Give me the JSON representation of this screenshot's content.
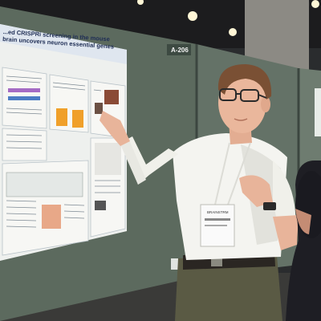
{
  "poster": {
    "title": "...ed CRISPRi screening in the mouse brain uncovers neuron essential genes",
    "booth_number": "A-206"
  },
  "badge": {
    "text": "BRAINSTRM"
  },
  "colors": {
    "partition_panel": "#5c6a5e",
    "poster_paper": "#eef0ee",
    "shirt": "#f4f4f0",
    "trousers": "#5a5a44",
    "ceiling": "#1c1c1e"
  }
}
